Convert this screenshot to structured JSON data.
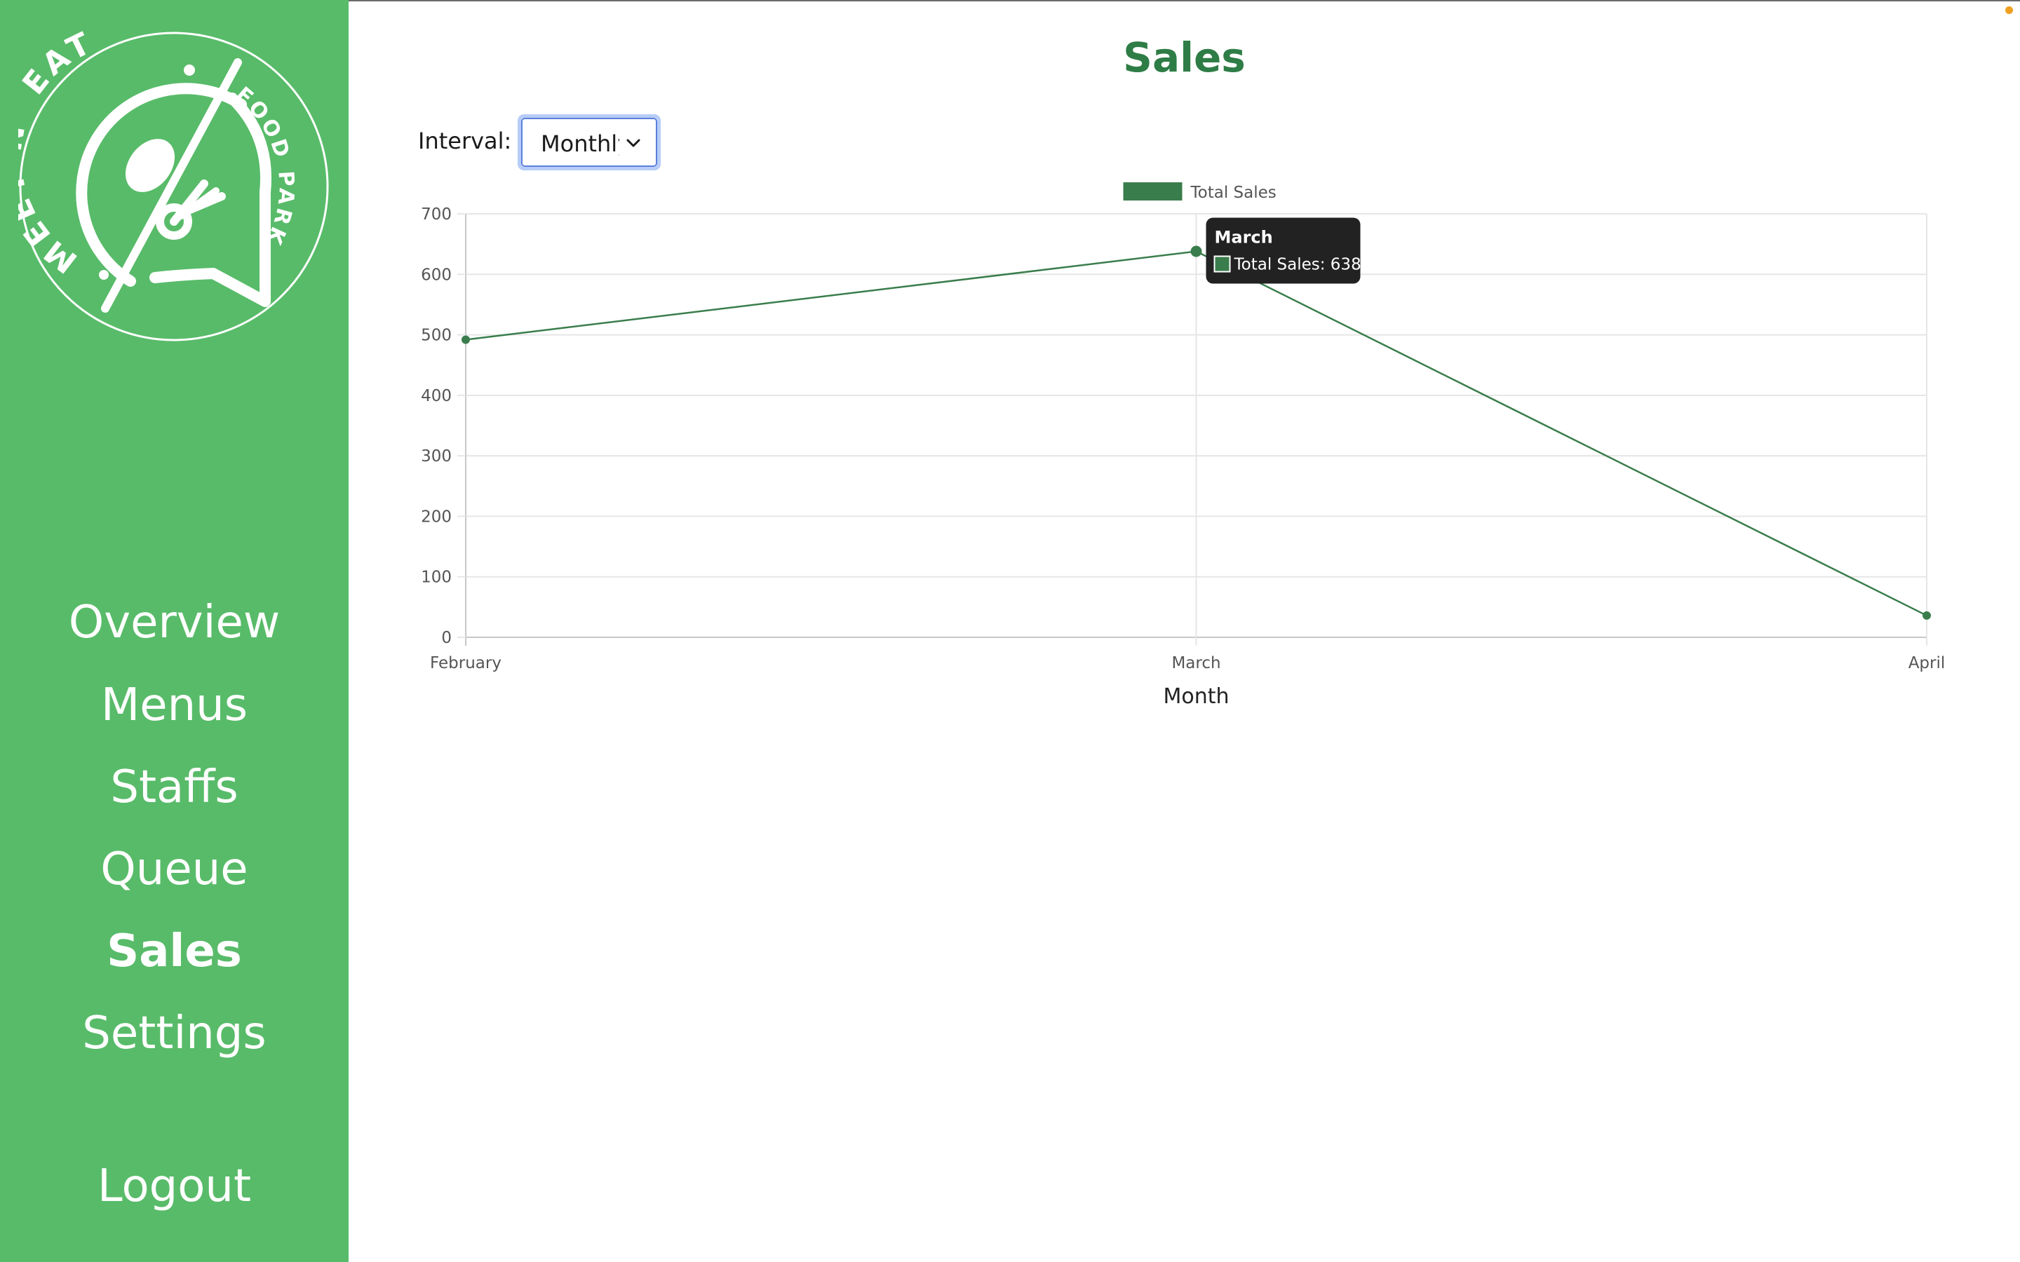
{
  "sidebar": {
    "logo": {
      "text_top": "MEET N' EAT",
      "text_side": "FOOD PARK"
    },
    "items": [
      {
        "label": "Overview",
        "active": false
      },
      {
        "label": "Menus",
        "active": false
      },
      {
        "label": "Staffs",
        "active": false
      },
      {
        "label": "Queue",
        "active": false
      },
      {
        "label": "Sales",
        "active": true
      },
      {
        "label": "Settings",
        "active": false
      }
    ],
    "logout_label": "Logout",
    "background_color": "#58bb69"
  },
  "main": {
    "title": "Sales",
    "interval": {
      "label": "Interval:",
      "selected": "Monthly"
    }
  },
  "colors": {
    "accent": "#2e7d46",
    "line": "#3a7d4c",
    "tooltip_bg": "#222222"
  },
  "chart_data": {
    "type": "line",
    "categories": [
      "February",
      "March",
      "April"
    ],
    "series": [
      {
        "name": "Total Sales",
        "values": [
          492,
          638,
          36
        ]
      }
    ],
    "xlabel": "Month",
    "ylabel": "",
    "ylim": [
      0,
      700
    ],
    "yticks": [
      0,
      100,
      200,
      300,
      400,
      500,
      600,
      700
    ],
    "grid": true,
    "legend": "top-center",
    "tooltip": {
      "title": "March",
      "text": "Total Sales: 638",
      "index": 1
    }
  }
}
